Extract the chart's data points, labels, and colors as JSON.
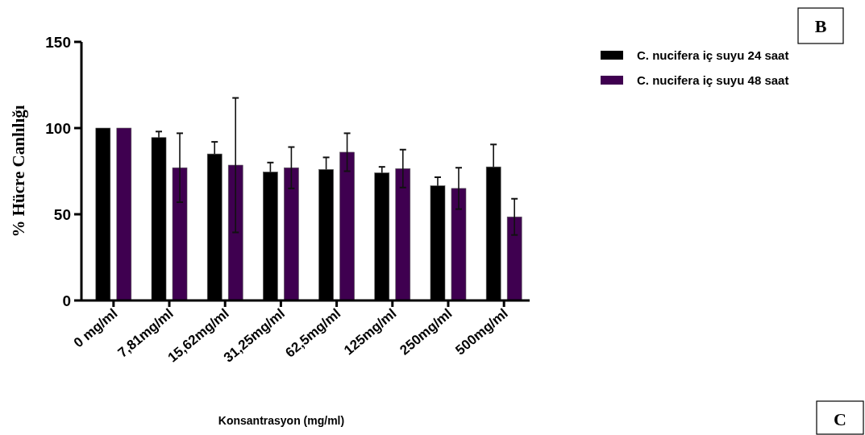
{
  "chart_data": {
    "type": "bar",
    "categories": [
      "0 mg/ml",
      "7,81mg/ml",
      "15,62mg/ml",
      "31,25mg/ml",
      "62,5mg/ml",
      "125mg/ml",
      "250mg/ml",
      "500mg/ml"
    ],
    "series": [
      {
        "name": "C. nucifera iç suyu 24 saat",
        "color": "#000000",
        "values": [
          100,
          94.5,
          85,
          74.5,
          76,
          74,
          66.5,
          77.5
        ],
        "errors": [
          null,
          3.5,
          7,
          5.5,
          7,
          3.5,
          5,
          13
        ]
      },
      {
        "name": "C. nucifera iç suyu 48 saat",
        "color": "#3f0050",
        "values": [
          100,
          77,
          78.5,
          77,
          86,
          76.5,
          65,
          48.5
        ],
        "errors": [
          null,
          20,
          39,
          12,
          11,
          11,
          12,
          10.5
        ]
      }
    ],
    "xlabel": "Konsantrasyon (mg/ml)",
    "ylabel": "% Hücre Canlılığı",
    "ylim": [
      0,
      150
    ],
    "yticks": [
      0,
      50,
      100,
      150
    ],
    "legend": "right",
    "grid": false,
    "annotations": [
      "B",
      "C"
    ]
  }
}
